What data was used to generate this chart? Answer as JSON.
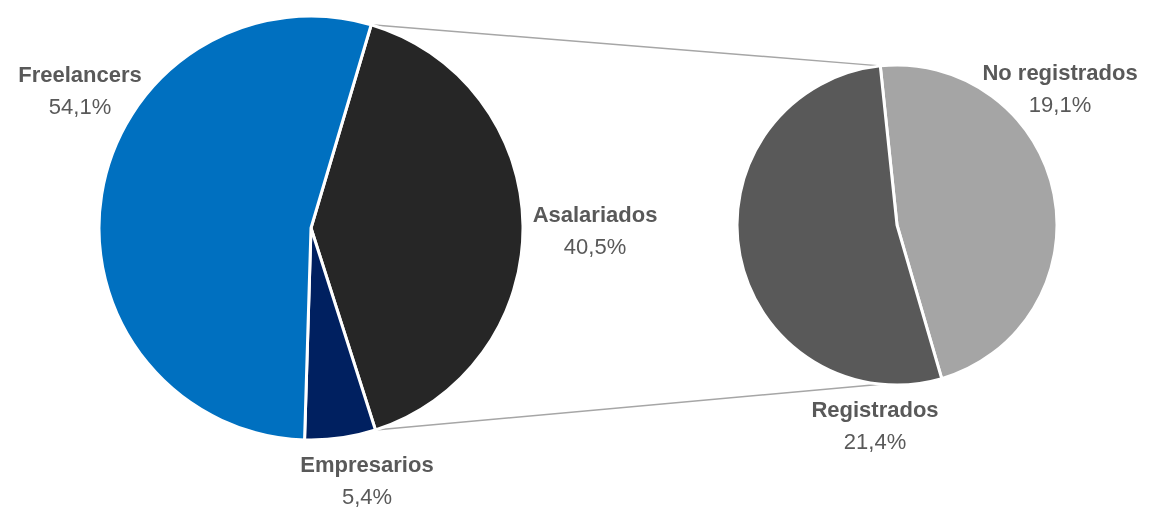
{
  "chart_data": [
    {
      "type": "pie",
      "categories": [
        "Asalariados",
        "Empresarios",
        "Freelancers"
      ],
      "values": [
        40.5,
        5.4,
        54.1
      ],
      "colors": [
        "#262626",
        "#002060",
        "#0070c0"
      ],
      "value_labels": [
        "40,5%",
        "5,4%",
        "54,1%"
      ]
    },
    {
      "type": "pie",
      "categories": [
        "No registrados",
        "Registrados"
      ],
      "values": [
        19.1,
        21.4
      ],
      "colors": [
        "#a5a5a5",
        "#595959"
      ],
      "value_labels": [
        "19,1%",
        "21,4%"
      ]
    }
  ]
}
